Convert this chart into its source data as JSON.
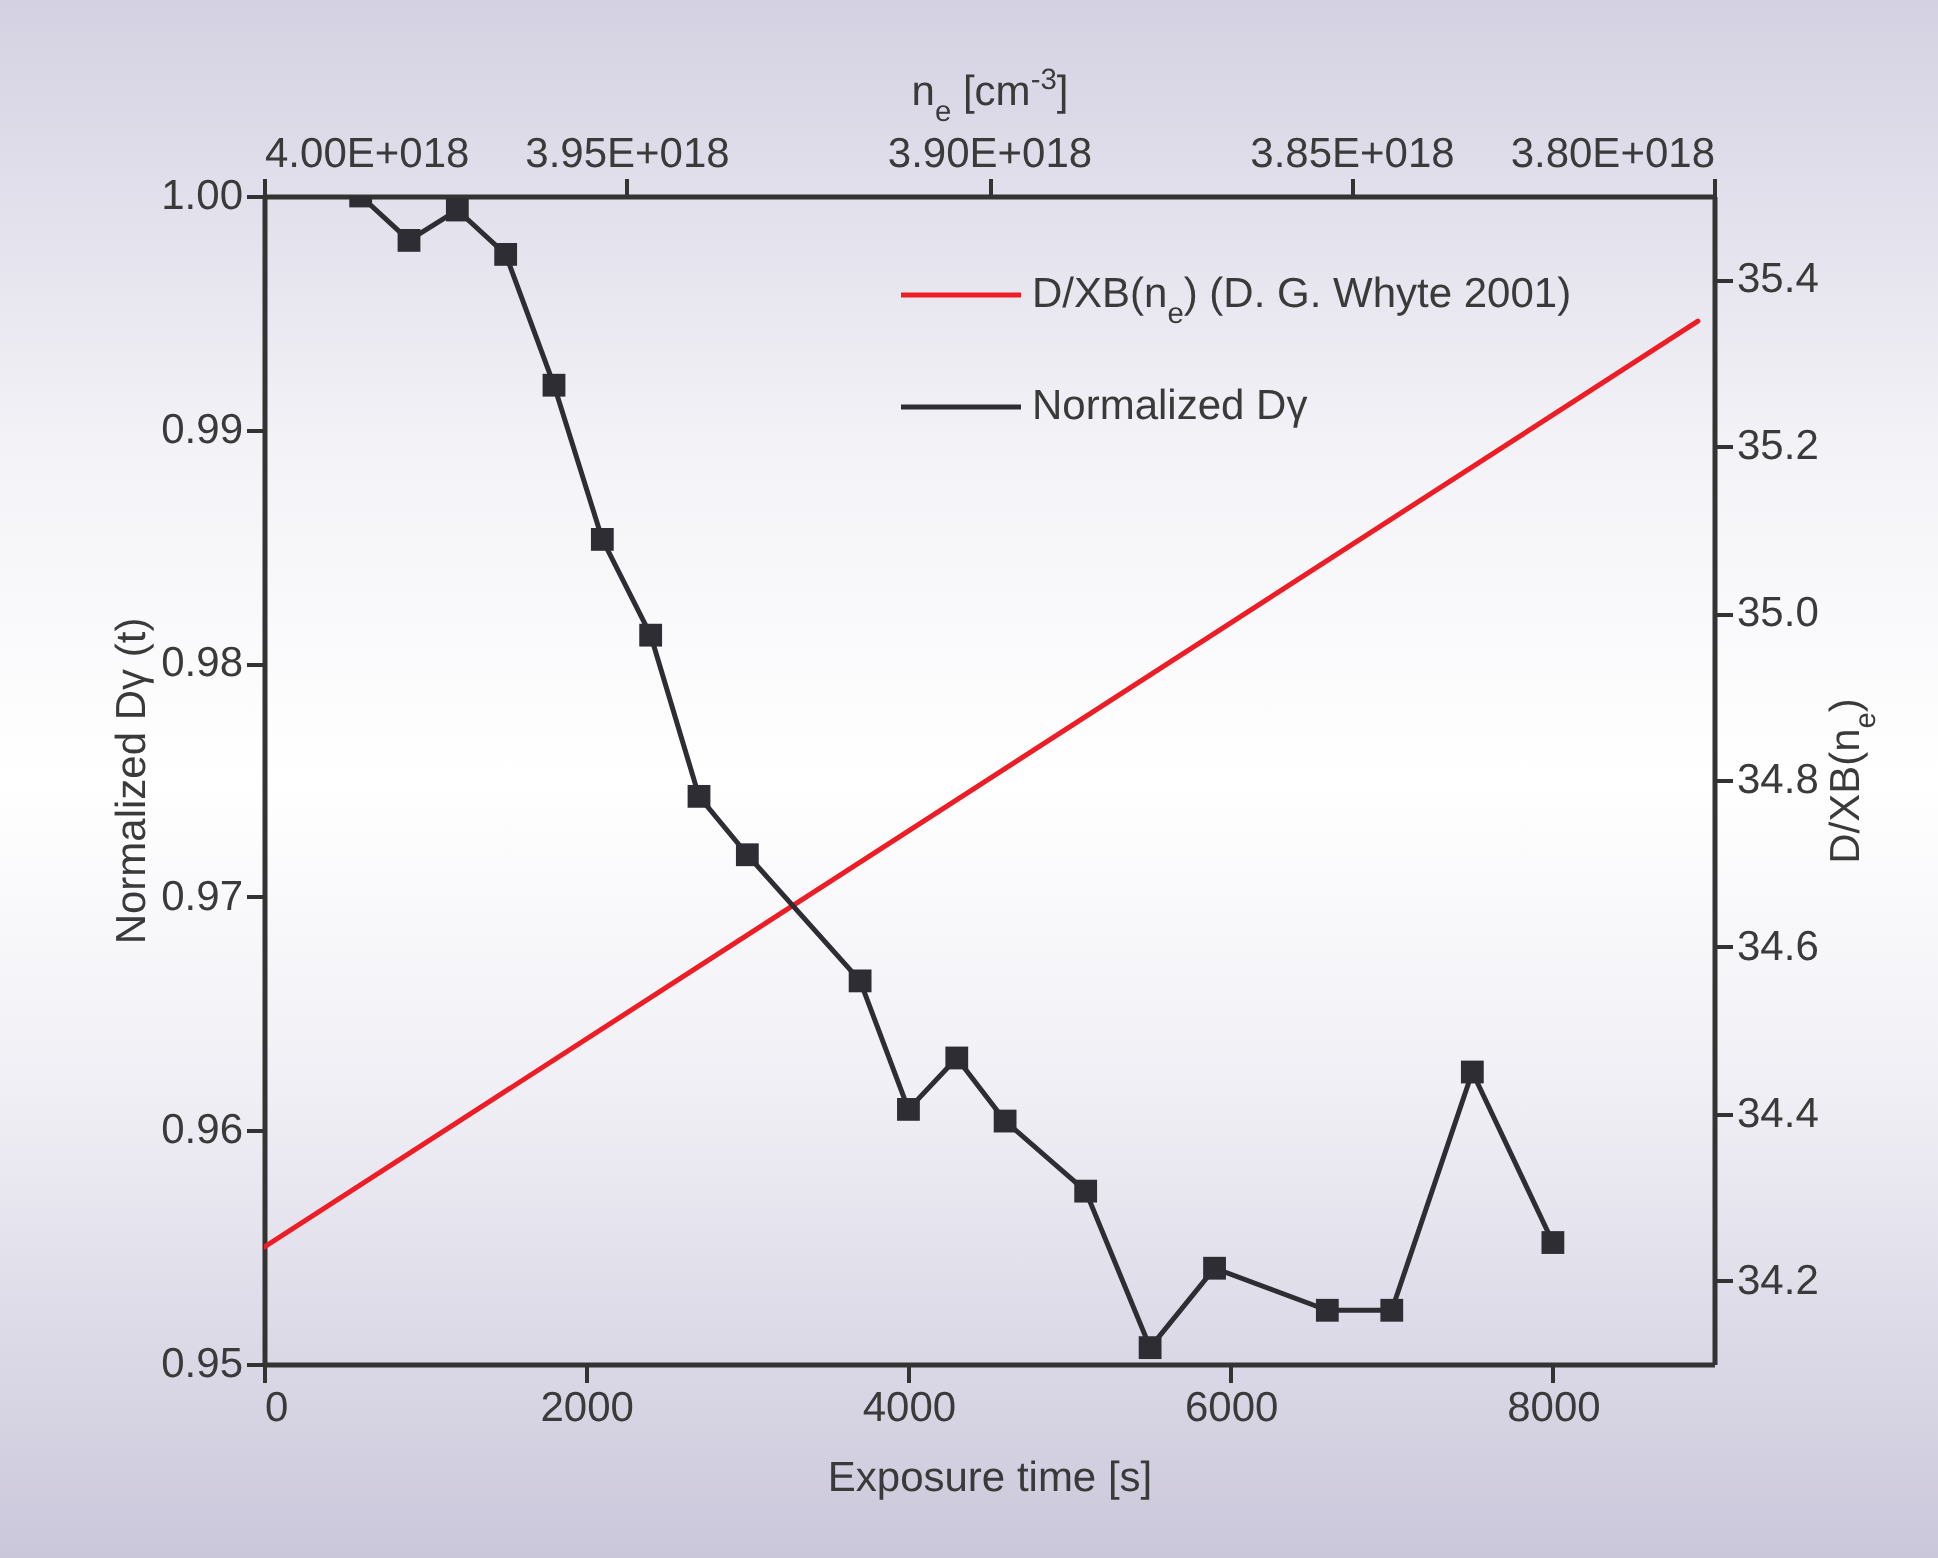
{
  "chart_data": {
    "type": "line",
    "xlabel": "Exposure time [s]",
    "ylabel": "Normalized Dγ (t)",
    "y2label": "D/XB(n$_{e}$)",
    "x2label": "n$_{e}$ [cm$^{-3}$]",
    "xlim": [
      0,
      9000
    ],
    "xticks": [
      0,
      2000,
      4000,
      6000,
      8000
    ],
    "ylim": [
      0.95,
      1.0
    ],
    "yticks": [
      0.95,
      0.96,
      0.97,
      0.98,
      0.99,
      {
        "value": 1.0,
        "label": "1.00"
      }
    ],
    "y2lim": [
      34.1,
      35.5
    ],
    "y2ticks": [
      34.2,
      34.4,
      34.6,
      34.8,
      {
        "value": 35.0,
        "label": "35.0"
      },
      35.2,
      35.4
    ],
    "x2lim": [
      4e+18,
      3.8e+18
    ],
    "x2ticks": [
      {
        "value": 4e+18,
        "label": "4.00E+018"
      },
      {
        "value": 3.95e+18,
        "label": "3.95E+018"
      },
      {
        "value": 3.9e+18,
        "label": "3.90E+018"
      },
      {
        "value": 3.85e+18,
        "label": "3.85E+018"
      },
      {
        "value": 3.8e+18,
        "label": "3.80E+018"
      }
    ],
    "legend": "top right",
    "grid": false,
    "series": [
      {
        "name": "D/XB(n$_{e}$) (D. G. Whyte 2001)",
        "color": "#ee1c24",
        "axis": "y2",
        "marker": "none",
        "x": [
          0,
          8900
        ],
        "values": [
          34.24,
          35.35
        ]
      },
      {
        "name": "Normalized Dγ",
        "color": "#2d2d33",
        "axis": "y",
        "marker": "square",
        "x": [
          600,
          900,
          1200,
          1500,
          1800,
          2100,
          2400,
          2700,
          3000,
          3700,
          4000,
          4300,
          4600,
          5100,
          5500,
          5900,
          6600,
          7000,
          7500,
          8000
        ],
        "values": [
          1.0,
          0.9981,
          0.9994,
          0.9975,
          0.9919,
          0.9853,
          0.9812,
          0.9743,
          0.9718,
          0.9664,
          0.9609,
          0.9631,
          0.9604,
          0.9574,
          0.9507,
          0.9541,
          0.9523,
          0.9523,
          0.9625,
          0.9552
        ]
      }
    ]
  }
}
